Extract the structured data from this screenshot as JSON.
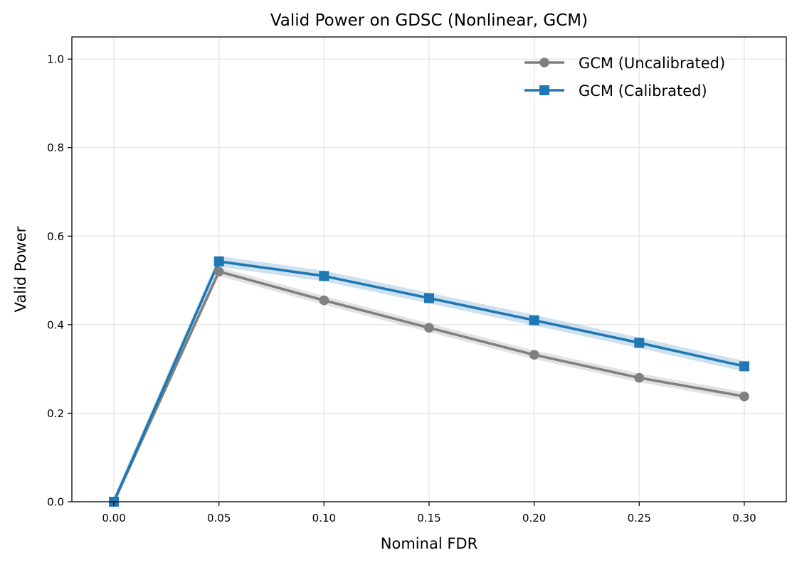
{
  "chart_data": {
    "type": "line",
    "title": "Valid Power on GDSC (Nonlinear, GCM)",
    "xlabel": "Nominal FDR",
    "ylabel": "Valid Power",
    "x": [
      0.0,
      0.05,
      0.1,
      0.15,
      0.2,
      0.25,
      0.3
    ],
    "xlim": [
      -0.02,
      0.32
    ],
    "ylim": [
      0.0,
      1.05
    ],
    "x_ticks": [
      "0.00",
      "0.05",
      "0.10",
      "0.15",
      "0.20",
      "0.25",
      "0.30"
    ],
    "y_ticks": [
      "0.0",
      "0.2",
      "0.4",
      "0.6",
      "0.8",
      "1.0"
    ],
    "grid": true,
    "legend_position": "top-right",
    "series": [
      {
        "name": "GCM (Uncalibrated)",
        "color": "#808080",
        "marker": "circle",
        "values": [
          0.0,
          0.52,
          0.455,
          0.393,
          0.332,
          0.28,
          0.238
        ],
        "band": 0.01
      },
      {
        "name": "GCM (Calibrated)",
        "color": "#1f77b4",
        "marker": "square",
        "values": [
          0.0,
          0.543,
          0.51,
          0.46,
          0.41,
          0.359,
          0.306
        ],
        "band": 0.012
      }
    ]
  }
}
